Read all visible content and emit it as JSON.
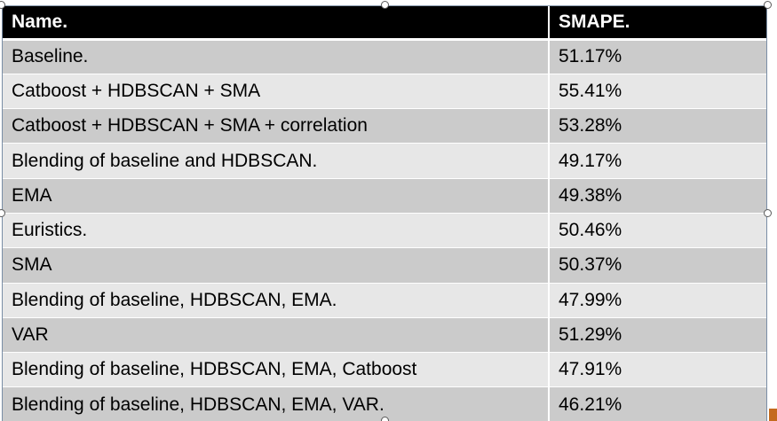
{
  "table": {
    "headers": [
      "Name.",
      "SMAPE."
    ],
    "rows": [
      {
        "name": "Baseline.",
        "smape": "51.17%"
      },
      {
        "name": "Catboost + HDBSCAN + SMA",
        "smape": "55.41%"
      },
      {
        "name": "Catboost + HDBSCAN + SMA + correlation",
        "smape": "53.28%"
      },
      {
        "name": "Blending of baseline and HDBSCAN.",
        "smape": "49.17%"
      },
      {
        "name": "EMA",
        "smape": "49.38%"
      },
      {
        "name": "Euristics.",
        "smape": "50.46%"
      },
      {
        "name": "SMA",
        "smape": "50.37%"
      },
      {
        "name": "Blending of baseline, HDBSCAN, EMA.",
        "smape": "47.99%"
      },
      {
        "name": "VAR",
        "smape": "51.29%"
      },
      {
        "name": "Blending of baseline, HDBSCAN, EMA, Catboost",
        "smape": "47.91%"
      },
      {
        "name": "Blending of baseline, HDBSCAN, EMA, VAR.",
        "smape": "46.21%"
      }
    ]
  },
  "colors": {
    "header_bg": "#000000",
    "row_dark": "#cbcbcb",
    "row_light": "#e7e7e7"
  }
}
